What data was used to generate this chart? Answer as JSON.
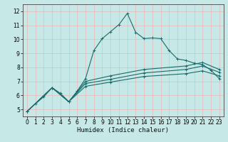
{
  "title": "",
  "xlabel": "Humidex (Indice chaleur)",
  "ylabel": "",
  "xlim": [
    -0.5,
    23.5
  ],
  "ylim": [
    4.5,
    12.5
  ],
  "yticks": [
    5,
    6,
    7,
    8,
    9,
    10,
    11,
    12
  ],
  "xticks": [
    0,
    1,
    2,
    3,
    4,
    5,
    6,
    7,
    8,
    9,
    10,
    11,
    12,
    13,
    14,
    15,
    16,
    17,
    18,
    19,
    20,
    21,
    22,
    23
  ],
  "bg_color": "#c6e8e6",
  "grid_color": "#e8b8b8",
  "line_color": "#1a6b6b",
  "lines": [
    [
      0,
      4.85,
      1,
      5.4,
      2,
      5.9,
      3,
      6.55,
      4,
      6.15,
      5,
      5.55,
      6,
      6.3,
      7,
      7.2,
      8,
      9.2,
      9,
      10.05,
      10,
      10.55,
      11,
      11.05,
      12,
      11.85,
      13,
      10.5,
      14,
      10.05,
      15,
      10.1,
      16,
      10.05,
      17,
      9.2,
      18,
      8.6,
      19,
      8.5,
      20,
      8.3,
      21,
      8.2,
      22,
      7.8,
      23,
      7.2
    ],
    [
      0,
      4.85,
      3,
      6.55,
      5,
      5.55,
      7,
      6.65,
      10,
      6.95,
      14,
      7.35,
      19,
      7.55,
      21,
      7.75,
      23,
      7.4
    ],
    [
      0,
      4.85,
      3,
      6.55,
      5,
      5.55,
      7,
      6.85,
      10,
      7.15,
      14,
      7.6,
      19,
      7.85,
      21,
      8.1,
      23,
      7.65
    ],
    [
      0,
      4.85,
      3,
      6.55,
      5,
      5.55,
      7,
      7.0,
      10,
      7.4,
      14,
      7.85,
      19,
      8.1,
      21,
      8.35,
      23,
      7.85
    ]
  ]
}
